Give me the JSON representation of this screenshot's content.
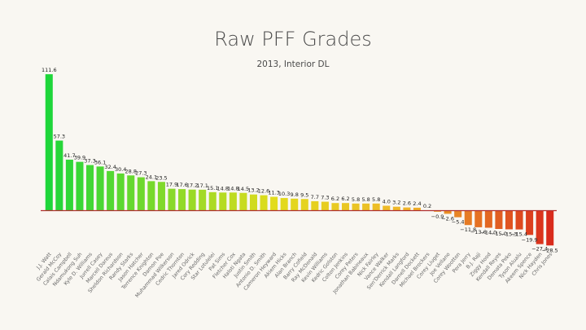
{
  "chart_data": {
    "type": "bar",
    "title": "Raw PFF Grades",
    "subtitle": "2013, Interior DL",
    "xlabel": "",
    "ylabel": "",
    "ylim": [
      -30,
      115
    ],
    "grid": false,
    "categories": [
      "J.J. Watt",
      "Gerald McCoy",
      "Calais Campbell",
      "Ndamukong Suh",
      "Kyle D. Williams",
      "Jurrell Casey",
      "Marcell Dareus",
      "Sheldon Richardson",
      "Randy Starks",
      "Jason Hatcher",
      "Terrence Knighton",
      "Damon Poe",
      "Muhammad Wilkerson",
      "Cedric Thornton",
      "Jared Odrick",
      "Cory Redding",
      "Star Lotulelei",
      "Pat Sims",
      "Fletcher Cox",
      "Haloti Ngata",
      "Justin Smith",
      "Antonio D. Smith",
      "Cameron Heyward",
      "Akiem Hicks",
      "Alan Branch",
      "Barry Cofield",
      "Ray McDonald",
      "Kevin Williams",
      "Kedric Golston",
      "Colton Jenkins",
      "Corey Peters",
      "Jonathan Babineaux",
      "Nick Fairley",
      "Vance Walker",
      "Sen'Derrick Marks",
      "Kendall Langford",
      "Darnell Dockett",
      "Michael Brockers",
      "Corey Liuget",
      "Joe Vellano",
      "Corey Wootton",
      "Pera Jerry",
      "B.J. Raji",
      "Ziggy Hood",
      "Kendall Reyes",
      "Domata Peko",
      "Tyson Alualu",
      "Akeem Spence",
      "Nick Hayden",
      "Chris Jones"
    ],
    "values": [
      111.6,
      57.3,
      41.7,
      39.9,
      37.3,
      36.1,
      32.4,
      30.4,
      28.8,
      27.3,
      24.1,
      23.5,
      17.9,
      17.6,
      17.2,
      17.1,
      15.1,
      14.8,
      14.8,
      14.5,
      13.2,
      12.6,
      11.3,
      10.3,
      9.8,
      9.5,
      7.7,
      7.3,
      6.2,
      6.2,
      5.8,
      5.8,
      5.8,
      4.0,
      3.2,
      2.6,
      2.4,
      0.2,
      -0.9,
      -2.6,
      -5.4,
      -11.8,
      -13.6,
      -14.0,
      -15.0,
      -15.3,
      -15.4,
      -19.9,
      -27.4,
      -28.5
    ],
    "value_labels": [
      "111.6",
      "57.3",
      "41.7",
      "39.9",
      "37.3",
      "36.1",
      "32.4",
      "30.4",
      "28.8",
      "27.3",
      "24.1",
      "23.5",
      "17.9",
      "17.6",
      "17.2",
      "17.1",
      "15.1",
      "14.8",
      "14.8",
      "14.5",
      "13.2",
      "12.6",
      "11.3",
      "10.3",
      "9.8",
      "9.5",
      "7.7",
      "7.3",
      "6.2",
      "6.2",
      "5.8",
      "5.8",
      "5.8",
      "4.0",
      "3.2",
      "2.6",
      "2.4",
      "0.2",
      "−0.9",
      "−2.6",
      "−5.4",
      "−11.8",
      "−13.6",
      "−14.0",
      "−15.0",
      "−15.3",
      "−15.4",
      "−19.9",
      "−27.4",
      "−28.5"
    ],
    "colors": {
      "high": "#1ed63a",
      "mid": "#e2dc1c",
      "neutral": "#f0b429",
      "low": "#d92b1c",
      "axis": "#b03030"
    }
  }
}
